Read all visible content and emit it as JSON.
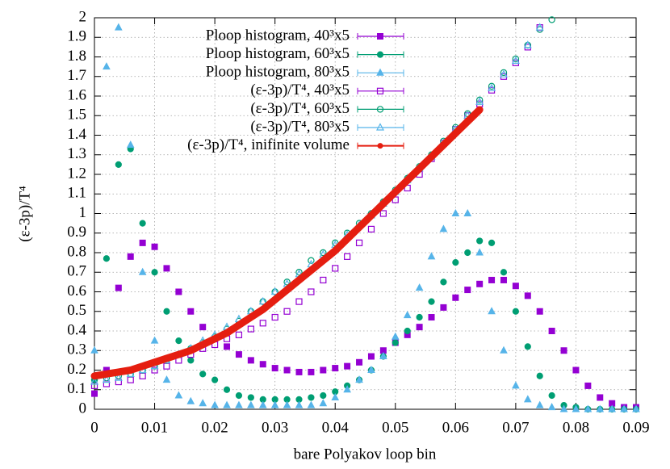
{
  "chart_data": {
    "type": "scatter",
    "xlabel": "bare Polyakov loop bin",
    "ylabel": "(ε-3p)/T⁴",
    "xlim": [
      0,
      0.09
    ],
    "ylim": [
      0,
      2
    ],
    "xticks": [
      0,
      0.01,
      0.02,
      0.03,
      0.04,
      0.05,
      0.06,
      0.07,
      0.08,
      0.09
    ],
    "yticks": [
      0,
      0.1,
      0.2,
      0.3,
      0.4,
      0.5,
      0.6,
      0.7,
      0.8,
      0.9,
      1,
      1.1,
      1.2,
      1.3,
      1.4,
      1.5,
      1.6,
      1.7,
      1.8,
      1.9,
      2
    ],
    "grid": true,
    "legend": "top",
    "x": [
      0,
      0.002,
      0.004,
      0.006,
      0.008,
      0.01,
      0.012,
      0.014,
      0.016,
      0.018,
      0.02,
      0.022,
      0.024,
      0.026,
      0.028,
      0.03,
      0.032,
      0.034,
      0.036,
      0.038,
      0.04,
      0.042,
      0.044,
      0.046,
      0.048,
      0.05,
      0.052,
      0.054,
      0.056,
      0.058,
      0.06,
      0.062,
      0.064,
      0.066,
      0.068,
      0.07,
      0.072,
      0.074,
      0.076,
      0.078,
      0.08,
      0.082,
      0.084,
      0.086,
      0.088,
      0.09
    ],
    "series": [
      {
        "name": "Ploop histogram, 40³x5",
        "color": "#9400d3",
        "marker": "square",
        "filled": true,
        "values": [
          0.08,
          0.2,
          0.62,
          0.78,
          0.85,
          0.83,
          0.72,
          0.6,
          0.5,
          0.42,
          0.36,
          0.32,
          0.28,
          0.25,
          0.23,
          0.21,
          0.2,
          0.19,
          0.19,
          0.2,
          0.21,
          0.22,
          0.24,
          0.27,
          0.3,
          0.34,
          0.38,
          0.42,
          0.47,
          0.52,
          0.57,
          0.61,
          0.64,
          0.66,
          0.66,
          0.63,
          0.58,
          0.5,
          0.4,
          0.3,
          0.2,
          0.12,
          0.06,
          0.03,
          0.01,
          0.01
        ]
      },
      {
        "name": "Ploop histogram, 60³x5",
        "color": "#009e73",
        "marker": "circle",
        "filled": true,
        "values": [
          0.15,
          0.77,
          1.25,
          1.33,
          0.95,
          0.7,
          0.5,
          0.35,
          0.25,
          0.18,
          0.15,
          0.1,
          0.07,
          0.06,
          0.05,
          0.05,
          0.05,
          0.05,
          0.06,
          0.07,
          0.09,
          0.12,
          0.15,
          0.2,
          0.27,
          0.34,
          0.4,
          0.47,
          0.55,
          0.65,
          0.75,
          0.8,
          0.86,
          0.85,
          0.7,
          0.5,
          0.32,
          0.17,
          0.07,
          0.02,
          0.01,
          0,
          0,
          0,
          0,
          0
        ]
      },
      {
        "name": "Ploop histogram, 80³x5",
        "color": "#56b4e9",
        "marker": "triangle",
        "filled": true,
        "values": [
          0.3,
          1.75,
          1.95,
          1.35,
          0.7,
          0.35,
          0.15,
          0.07,
          0.04,
          0.03,
          0.02,
          0.02,
          0.02,
          0.02,
          0.02,
          0.02,
          0.02,
          0.02,
          0.02,
          0.03,
          0.06,
          0.1,
          0.15,
          0.2,
          0.27,
          0.37,
          0.48,
          0.62,
          0.78,
          0.92,
          1.0,
          1.0,
          0.8,
          0.5,
          0.3,
          0.12,
          0.05,
          0.02,
          0.01,
          0,
          0,
          0,
          0,
          0,
          0,
          0
        ]
      },
      {
        "name": "(ε-3p)/T⁴, 40³x5",
        "color": "#9400d3",
        "marker": "square",
        "filled": false,
        "values": [
          0.12,
          0.13,
          0.14,
          0.15,
          0.17,
          0.2,
          0.22,
          0.25,
          0.28,
          0.31,
          0.33,
          0.36,
          0.38,
          0.41,
          0.44,
          0.47,
          0.5,
          0.55,
          0.6,
          0.66,
          0.72,
          0.78,
          0.85,
          0.92,
          1.0,
          1.07,
          1.13,
          1.2,
          1.28,
          1.36,
          1.43,
          1.5,
          1.56,
          1.63,
          1.7,
          1.77,
          1.85,
          1.95,
          null,
          null,
          null,
          null,
          null,
          null,
          null,
          null
        ]
      },
      {
        "name": "(ε-3p)/T⁴, 60³x5",
        "color": "#009e73",
        "marker": "circle",
        "filled": false,
        "values": [
          0.15,
          0.16,
          0.17,
          0.18,
          0.2,
          0.22,
          0.25,
          0.28,
          0.31,
          0.34,
          0.37,
          0.41,
          0.45,
          0.5,
          0.55,
          0.6,
          0.65,
          0.7,
          0.76,
          0.8,
          0.85,
          0.9,
          0.95,
          1.0,
          1.06,
          1.12,
          1.18,
          1.24,
          1.3,
          1.37,
          1.44,
          1.51,
          1.58,
          1.65,
          1.72,
          1.79,
          1.86,
          1.94,
          1.99,
          null,
          null,
          null,
          null,
          null,
          null,
          null
        ]
      },
      {
        "name": "(ε-3p)/T⁴, 80³x5",
        "color": "#56b4e9",
        "marker": "triangle",
        "filled": false,
        "values": [
          0.14,
          0.15,
          0.16,
          0.18,
          0.2,
          0.22,
          0.25,
          0.28,
          0.31,
          0.35,
          0.38,
          0.42,
          0.46,
          0.5,
          0.55,
          0.6,
          0.64,
          0.69,
          0.74,
          0.79,
          0.84,
          0.89,
          0.94,
          0.99,
          1.05,
          1.11,
          1.17,
          1.23,
          1.29,
          1.36,
          1.43,
          1.5,
          1.57,
          1.64,
          1.71,
          1.78,
          1.86,
          1.95,
          null,
          null,
          null,
          null,
          null,
          null,
          null,
          null
        ]
      },
      {
        "name": "(ε-3p)/T⁴, inifinite volume",
        "color": "#e51e10",
        "marker": "thick-line",
        "filled": true,
        "x": [
          0,
          0.002,
          0.004,
          0.006,
          0.008,
          0.01,
          0.012,
          0.014,
          0.016,
          0.018,
          0.02,
          0.022,
          0.024,
          0.026,
          0.028,
          0.03,
          0.032,
          0.034,
          0.036,
          0.038,
          0.04,
          0.042,
          0.044,
          0.046,
          0.048,
          0.05,
          0.052,
          0.054,
          0.056,
          0.058,
          0.06,
          0.062,
          0.064
        ],
        "values": [
          0.17,
          0.18,
          0.19,
          0.2,
          0.22,
          0.24,
          0.26,
          0.28,
          0.3,
          0.33,
          0.36,
          0.39,
          0.43,
          0.47,
          0.51,
          0.56,
          0.61,
          0.66,
          0.71,
          0.76,
          0.81,
          0.87,
          0.93,
          0.99,
          1.05,
          1.11,
          1.17,
          1.23,
          1.29,
          1.35,
          1.41,
          1.47,
          1.53
        ]
      }
    ]
  }
}
